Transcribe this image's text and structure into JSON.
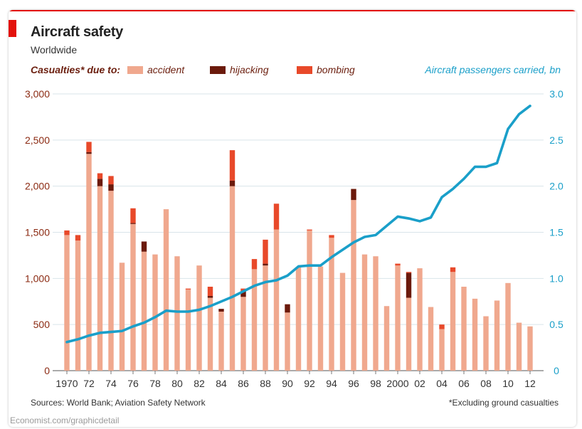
{
  "header": {
    "title": "Aircraft safety",
    "subtitle": "Worldwide"
  },
  "legend": {
    "label": "Casualties* due to:",
    "items": [
      {
        "label": "accident",
        "color": "#f0a88e"
      },
      {
        "label": "hijacking",
        "color": "#6b1a0c"
      },
      {
        "label": "bombing",
        "color": "#e8492a"
      }
    ],
    "right_label": "Aircraft passengers carried, bn"
  },
  "footer": {
    "sources": "Sources: World Bank; Aviation Safety Network",
    "note": "*Excluding ground casualties"
  },
  "watermark": "Economist.com/graphicdetail",
  "colors": {
    "accident": "#f0a88e",
    "hijacking": "#6b1a0c",
    "bombing": "#e8492a",
    "passengers": "#1a9fc9",
    "left_axis": "#8b2a12",
    "right_axis": "#1a9fc9",
    "grid": "#d9e4ea"
  },
  "chart_data": {
    "type": "bar",
    "stacked": true,
    "years": [
      1970,
      1971,
      1972,
      1973,
      1974,
      1975,
      1976,
      1977,
      1978,
      1979,
      1980,
      1981,
      1982,
      1983,
      1984,
      1985,
      1986,
      1987,
      1988,
      1989,
      1990,
      1991,
      1992,
      1993,
      1994,
      1995,
      1996,
      1997,
      1998,
      1999,
      2000,
      2001,
      2002,
      2003,
      2004,
      2005,
      2006,
      2007,
      2008,
      2009,
      2010,
      2011,
      2012
    ],
    "x_tick_labels": [
      {
        "year": 1970,
        "label": "1970"
      },
      {
        "year": 1972,
        "label": "72"
      },
      {
        "year": 1974,
        "label": "74"
      },
      {
        "year": 1976,
        "label": "76"
      },
      {
        "year": 1978,
        "label": "78"
      },
      {
        "year": 1980,
        "label": "80"
      },
      {
        "year": 1982,
        "label": "82"
      },
      {
        "year": 1984,
        "label": "84"
      },
      {
        "year": 1986,
        "label": "86"
      },
      {
        "year": 1988,
        "label": "88"
      },
      {
        "year": 1990,
        "label": "90"
      },
      {
        "year": 1992,
        "label": "92"
      },
      {
        "year": 1994,
        "label": "94"
      },
      {
        "year": 1996,
        "label": "96"
      },
      {
        "year": 1998,
        "label": "98"
      },
      {
        "year": 2000,
        "label": "2000"
      },
      {
        "year": 2002,
        "label": "02"
      },
      {
        "year": 2004,
        "label": "04"
      },
      {
        "year": 2006,
        "label": "06"
      },
      {
        "year": 2008,
        "label": "08"
      },
      {
        "year": 2010,
        "label": "10"
      },
      {
        "year": 2012,
        "label": "12"
      }
    ],
    "series": [
      {
        "name": "accident",
        "values": [
          1470,
          1410,
          2350,
          2000,
          1950,
          1170,
          1590,
          1290,
          1260,
          1750,
          1240,
          880,
          1140,
          790,
          640,
          2000,
          800,
          1100,
          1140,
          1530,
          630,
          1120,
          1520,
          1130,
          1440,
          1060,
          1850,
          1260,
          1240,
          700,
          1140,
          790,
          1110,
          690,
          450,
          1070,
          910,
          780,
          590,
          760,
          950,
          520,
          480
        ]
      },
      {
        "name": "hijacking",
        "values": [
          0,
          0,
          20,
          80,
          70,
          0,
          10,
          110,
          0,
          0,
          0,
          0,
          0,
          20,
          30,
          60,
          60,
          0,
          20,
          0,
          90,
          0,
          0,
          0,
          0,
          0,
          120,
          0,
          0,
          0,
          0,
          270,
          0,
          0,
          0,
          0,
          0,
          0,
          0,
          0,
          0,
          0,
          0
        ]
      },
      {
        "name": "bombing",
        "values": [
          50,
          60,
          110,
          60,
          90,
          0,
          160,
          0,
          0,
          0,
          0,
          10,
          0,
          100,
          0,
          330,
          30,
          110,
          260,
          280,
          0,
          0,
          10,
          0,
          30,
          0,
          0,
          0,
          0,
          0,
          20,
          10,
          0,
          0,
          50,
          50,
          0,
          0,
          0,
          0,
          0,
          0,
          0
        ]
      }
    ],
    "line": {
      "name": "Aircraft passengers carried, bn",
      "values": [
        0.31,
        0.34,
        0.38,
        0.41,
        0.42,
        0.43,
        0.48,
        0.52,
        0.58,
        0.65,
        0.64,
        0.64,
        0.66,
        0.7,
        0.75,
        0.8,
        0.86,
        0.92,
        0.96,
        0.98,
        1.03,
        1.13,
        1.14,
        1.14,
        1.23,
        1.31,
        1.39,
        1.45,
        1.47,
        1.57,
        1.67,
        1.65,
        1.62,
        1.66,
        1.88,
        1.97,
        2.08,
        2.21,
        2.21,
        2.25,
        2.62,
        2.78,
        2.87
      ]
    },
    "y_left": {
      "min": 0,
      "max": 3000,
      "ticks": [
        0,
        500,
        1000,
        1500,
        2000,
        2500,
        3000
      ],
      "tick_labels": [
        "0",
        "500",
        "1,000",
        "1,500",
        "2,000",
        "2,500",
        "3,000"
      ]
    },
    "y_right": {
      "min": 0,
      "max": 3.0,
      "ticks": [
        0,
        0.5,
        1.0,
        1.5,
        2.0,
        2.5,
        3.0
      ],
      "tick_labels": [
        "0",
        "0.5",
        "1.0",
        "1.5",
        "2.0",
        "2.5",
        "3.0"
      ]
    },
    "grid": true
  }
}
